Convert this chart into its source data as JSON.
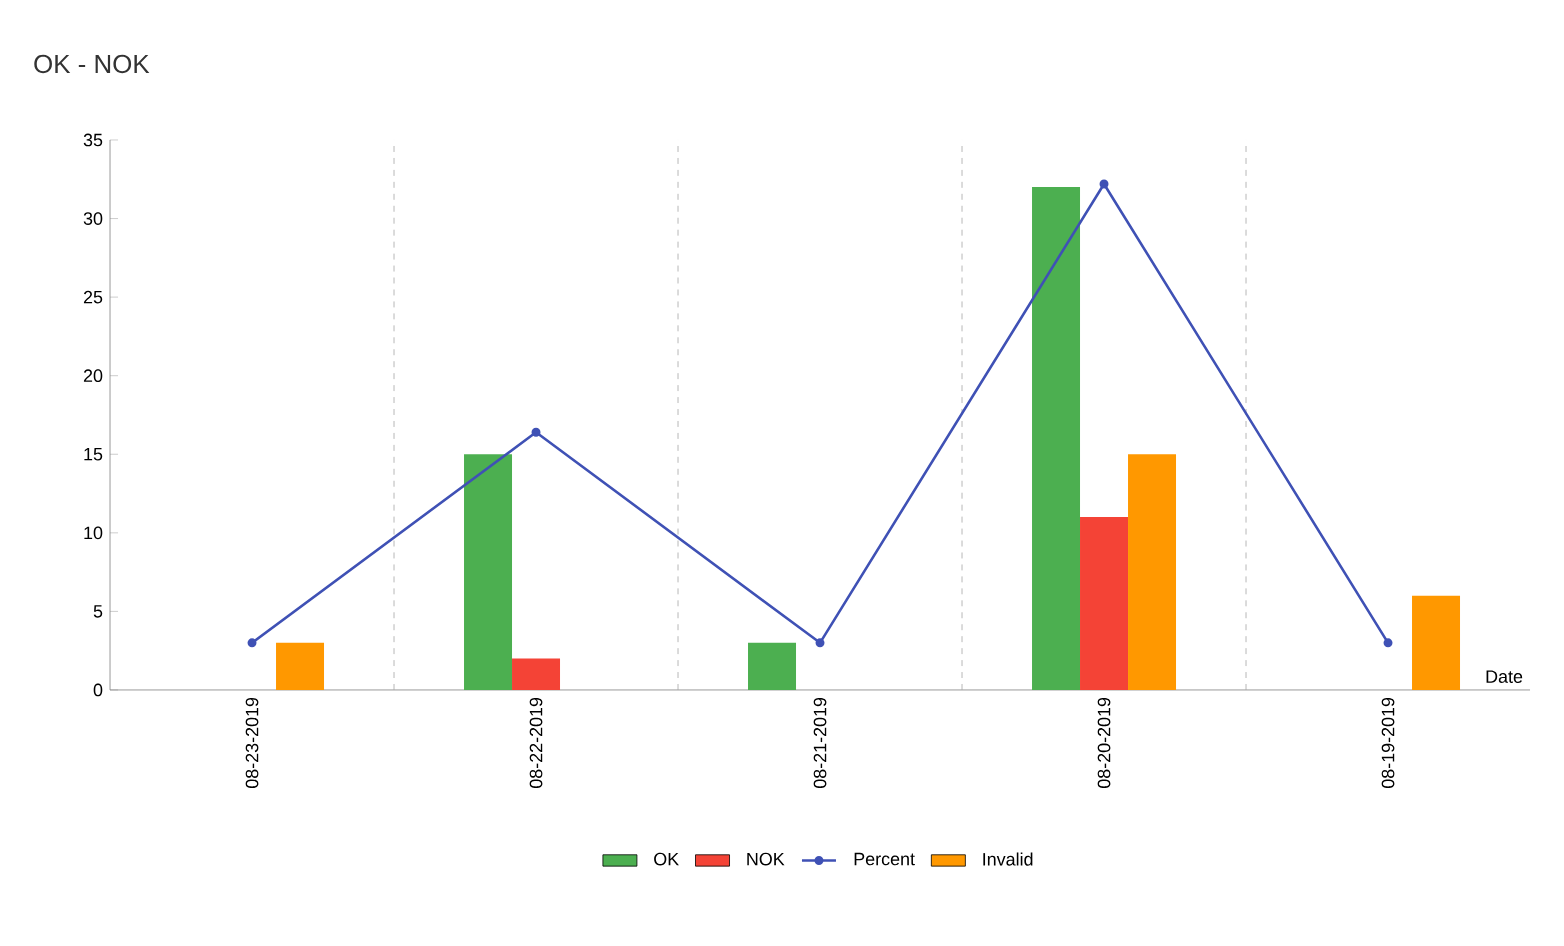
{
  "chart_data": {
    "type": "bar",
    "title": "OK - NOK",
    "xlabel": "Date",
    "categories": [
      "08-23-2019",
      "08-22-2019",
      "08-21-2019",
      "08-20-2019",
      "08-19-2019"
    ],
    "series": [
      {
        "name": "OK",
        "color": "#4caf50",
        "values": [
          null,
          15,
          3,
          32,
          null
        ]
      },
      {
        "name": "NOK",
        "color": "#f44336",
        "values": [
          null,
          2,
          null,
          11,
          null
        ]
      },
      {
        "name": "Percent",
        "type": "line",
        "color": "#3f51b5",
        "values": [
          3,
          16.4,
          3,
          32.2,
          3
        ]
      },
      {
        "name": "Invalid",
        "color": "#ff9800",
        "values": [
          3,
          null,
          null,
          15,
          6
        ]
      }
    ],
    "ylim": [
      0,
      35
    ],
    "yticks": [
      0,
      5,
      10,
      15,
      20,
      25,
      30,
      35
    ],
    "grid": "x",
    "legend": "bottom",
    "marker": "circle"
  }
}
